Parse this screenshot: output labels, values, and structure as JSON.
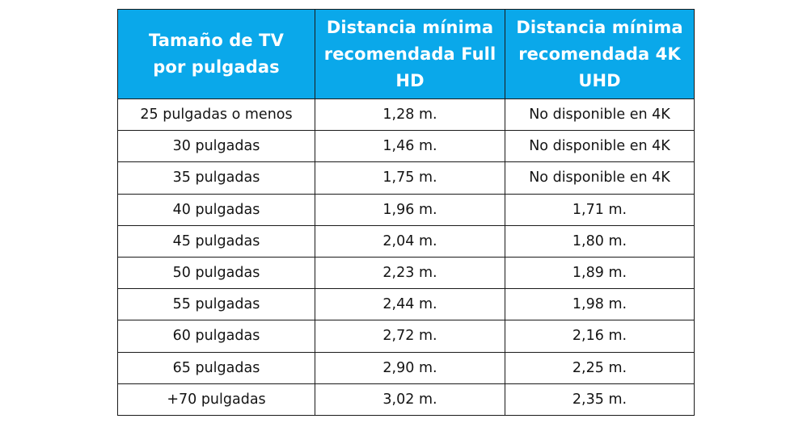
{
  "table": {
    "header_background": "#0aa8ea",
    "header_text_color": "#ffffff",
    "columns": [
      "Tamaño de TV por pulgadas",
      "Distancia mínima recomendada Full HD",
      "Distancia mínima recomendada 4K UHD"
    ],
    "rows": [
      [
        "25 pulgadas o menos",
        "1,28 m.",
        "No disponible en 4K"
      ],
      [
        "30 pulgadas",
        "1,46 m.",
        "No disponible en 4K"
      ],
      [
        "35 pulgadas",
        "1,75 m.",
        "No disponible en 4K"
      ],
      [
        "40 pulgadas",
        "1,96 m.",
        "1,71 m."
      ],
      [
        "45 pulgadas",
        "2,04 m.",
        "1,80 m."
      ],
      [
        "50 pulgadas",
        "2,23 m.",
        "1,89 m."
      ],
      [
        "55 pulgadas",
        "2,44 m.",
        "1,98 m."
      ],
      [
        "60 pulgadas",
        "2,72 m.",
        "2,16 m."
      ],
      [
        "65 pulgadas",
        "2,90 m.",
        "2,25 m."
      ],
      [
        "+70 pulgadas",
        "3,02 m.",
        "2,35 m."
      ]
    ]
  }
}
